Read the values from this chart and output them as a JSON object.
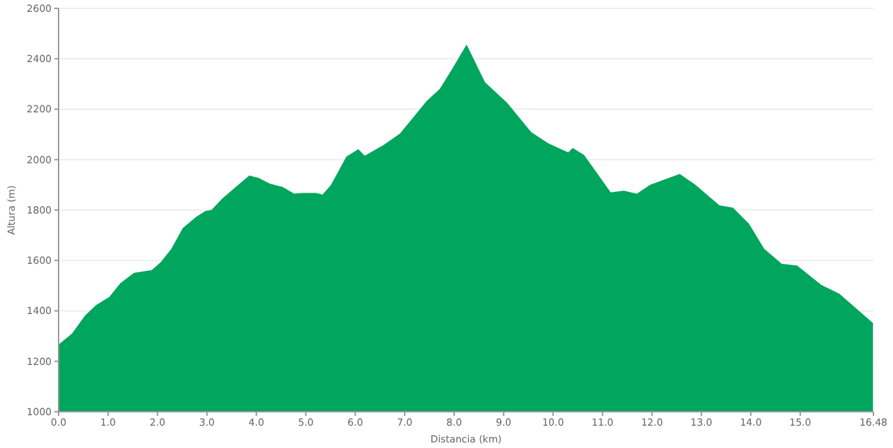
{
  "chart_data": {
    "type": "area",
    "xlabel": "Distancia  (km)",
    "ylabel": "Altura (m)",
    "grid": "y",
    "x": [
      0,
      0.28,
      0.55,
      0.77,
      1.04,
      1.26,
      1.53,
      1.89,
      2.07,
      2.29,
      2.52,
      2.79,
      2.97,
      3.1,
      3.32,
      3.59,
      3.86,
      4.04,
      4.27,
      4.53,
      4.76,
      4.94,
      5.21,
      5.34,
      5.52,
      5.83,
      6.06,
      6.19,
      6.55,
      6.91,
      7.18,
      7.45,
      7.72,
      7.98,
      8.25,
      8.61,
      9.06,
      9.55,
      9.91,
      10.31,
      10.4,
      10.62,
      11.16,
      11.43,
      11.7,
      11.97,
      12.56,
      12.87,
      13.36,
      13.63,
      13.95,
      14.26,
      14.62,
      14.93,
      15.43,
      15.78,
      16.47
    ],
    "series": [
      {
        "color": "#00a65d",
        "values": [
          1263,
          1308,
          1381,
          1421,
          1454,
          1508,
          1548,
          1559,
          1590,
          1644,
          1726,
          1771,
          1793,
          1798,
          1844,
          1889,
          1934,
          1925,
          1902,
          1889,
          1862,
          1865,
          1865,
          1858,
          1898,
          2010,
          2038,
          2012,
          2052,
          2101,
          2165,
          2230,
          2279,
          2361,
          2451,
          2306,
          2224,
          2107,
          2061,
          2025,
          2043,
          2016,
          1867,
          1874,
          1862,
          1898,
          1940,
          1898,
          1816,
          1807,
          1744,
          1644,
          1584,
          1577,
          1499,
          1466,
          1348
        ]
      }
    ],
    "xlim": [
      0,
      16.48
    ],
    "xticks": [
      {
        "value": 0,
        "label": "0.0"
      },
      {
        "value": 1,
        "label": "1.0"
      },
      {
        "value": 2,
        "label": "2.0"
      },
      {
        "value": 3,
        "label": "3.0"
      },
      {
        "value": 4,
        "label": "4.0"
      },
      {
        "value": 5,
        "label": "5.0"
      },
      {
        "value": 6,
        "label": "6.0"
      },
      {
        "value": 7,
        "label": "7.0"
      },
      {
        "value": 8,
        "label": "8.0"
      },
      {
        "value": 9,
        "label": "9.0"
      },
      {
        "value": 10,
        "label": "10.0"
      },
      {
        "value": 11,
        "label": "11.0"
      },
      {
        "value": 12,
        "label": "12.0"
      },
      {
        "value": 13,
        "label": "13.0"
      },
      {
        "value": 14,
        "label": "14.0"
      },
      {
        "value": 15,
        "label": "15.0"
      },
      {
        "value": 16.48,
        "label": "16.48"
      }
    ],
    "ylim": [
      1000,
      2600
    ],
    "yticks": [
      1000,
      1200,
      1400,
      1600,
      1800,
      2000,
      2200,
      2400,
      2600
    ]
  }
}
